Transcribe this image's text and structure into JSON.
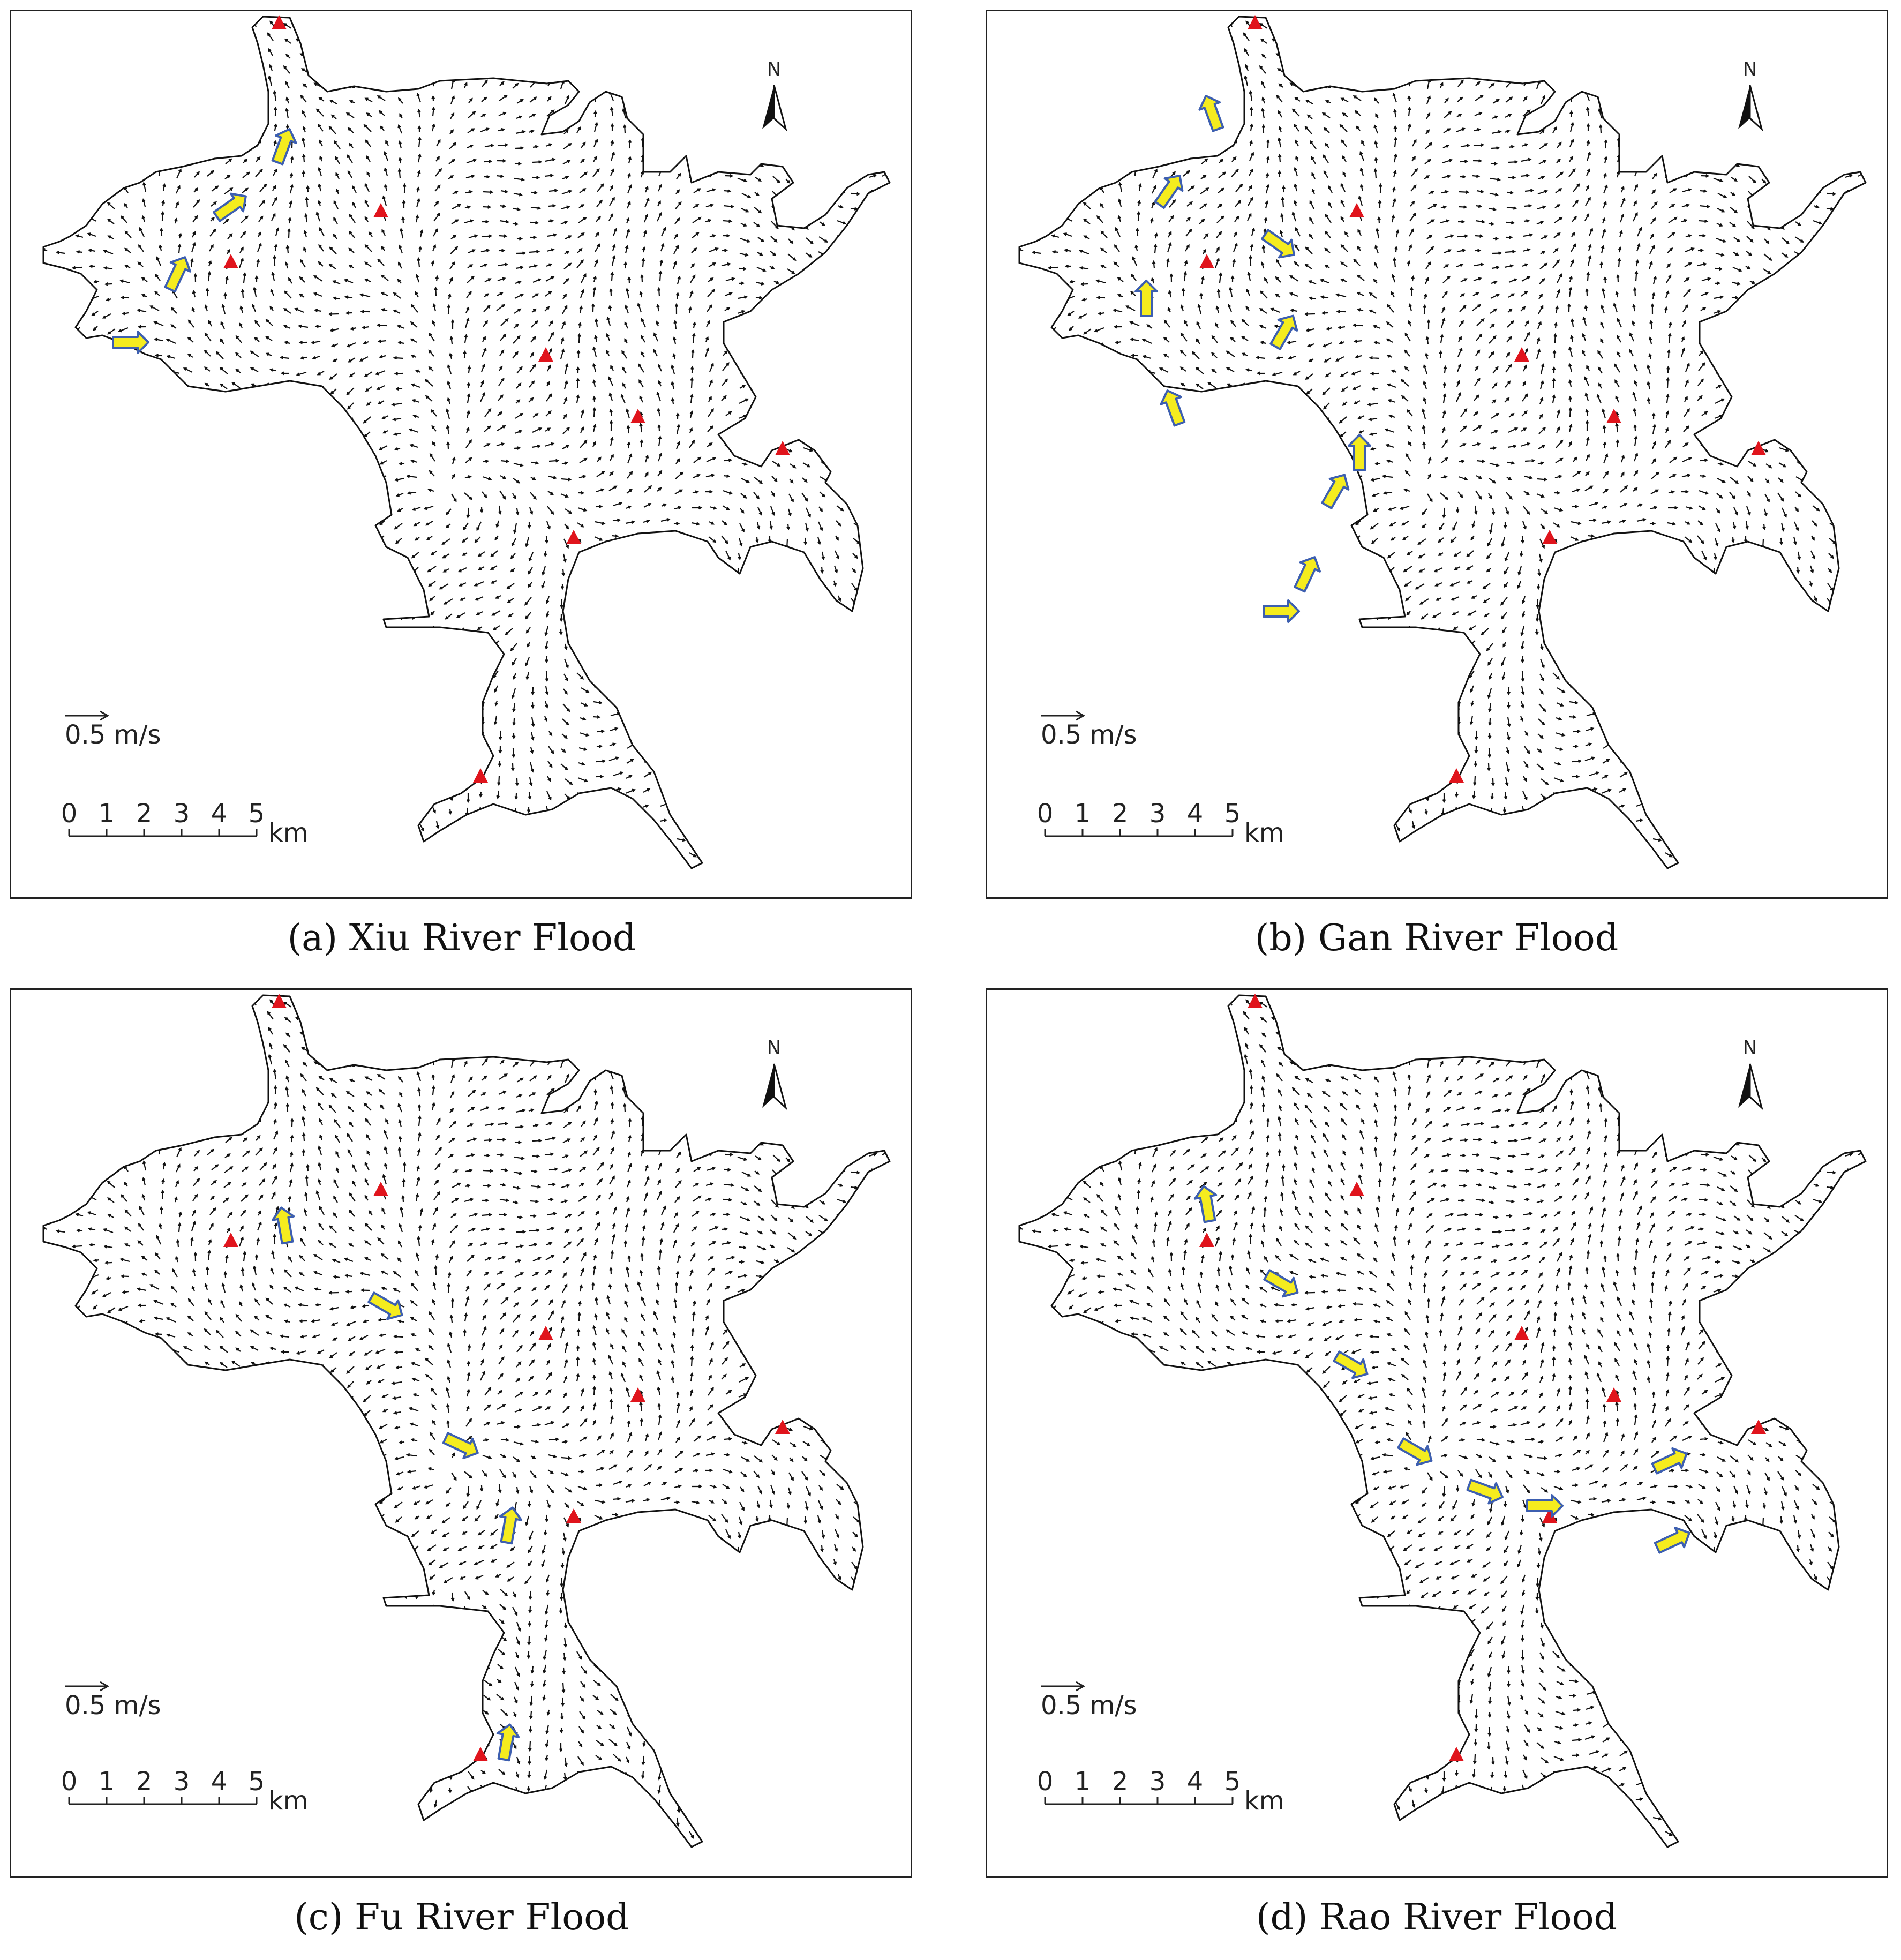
{
  "panels": [
    {
      "id": "a",
      "caption": "(a) Xiu River Flood"
    },
    {
      "id": "b",
      "caption": "(b) Gan River Flood"
    },
    {
      "id": "c",
      "caption": "(c) Fu River Flood"
    },
    {
      "id": "d",
      "caption": "(d) Rao River Flood"
    }
  ],
  "legend": {
    "velocity_label": "0.5 m/s",
    "scale_ticks": [
      "0",
      "1",
      "2",
      "3",
      "4",
      "5"
    ],
    "scale_unit": "km",
    "north_label": "N"
  },
  "colors": {
    "station_marker": "#e0141c",
    "inflow_arrow_fill": "#f5ec1e",
    "inflow_arrow_stroke": "#3d5fb0",
    "flow_vector": "#111111",
    "shoreline": "#111111"
  },
  "icons": {
    "station": "red-triangle-icon",
    "inflow": "yellow-arrow-icon",
    "north": "north-arrow-icon"
  }
}
